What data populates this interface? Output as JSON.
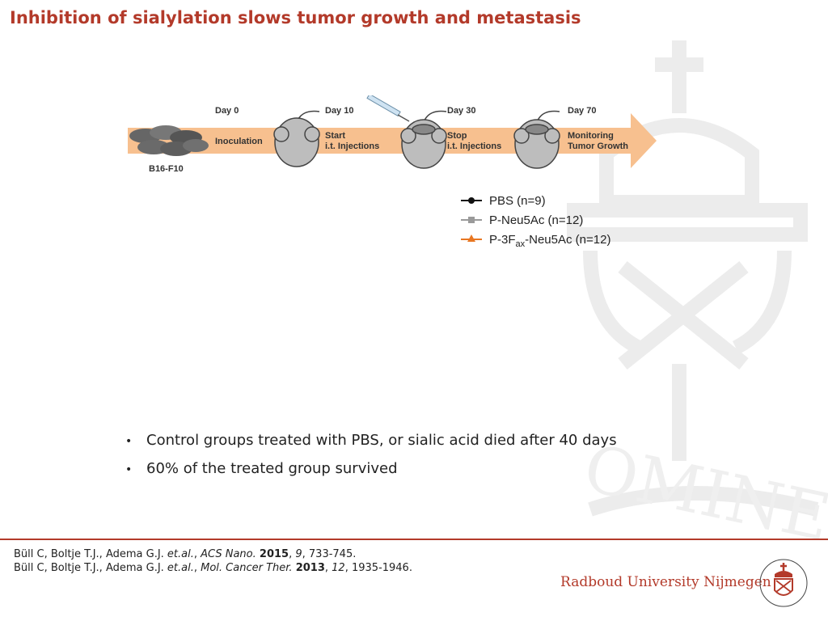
{
  "slide": {
    "title": "Inhibition of sialylation slows tumor growth and metastasis"
  },
  "timeline": {
    "days": [
      "Day 0",
      "Day 10",
      "Day 30",
      "Day 70"
    ],
    "steps": [
      {
        "line1": "Inoculation",
        "line2": ""
      },
      {
        "line1": "Start",
        "line2": "i.t. Injections"
      },
      {
        "line1": "Stop",
        "line2": "i.t. Injections"
      },
      {
        "line1": "Monitoring",
        "line2": "Tumor Growth"
      }
    ],
    "cell_line": "B16-F10",
    "arrow_color": "#f7c08f"
  },
  "legend": [
    {
      "label": "PBS (n=9)",
      "color": "#111111",
      "marker": "circle"
    },
    {
      "label": "P-Neu5Ac (n=12)",
      "color": "#9a9a9a",
      "marker": "square"
    },
    {
      "label_pre": "P-3F",
      "label_sub": "ax",
      "label_post": "-Neu5Ac (n=12)",
      "color": "#e87722",
      "marker": "triangle"
    }
  ],
  "bullets": [
    "Control groups treated with PBS, or sialic acid died after 40 days",
    "60% of the treated group survived"
  ],
  "references": [
    {
      "authors": "Büll C, Boltje T.J., Adema G.J. ",
      "etal": "et.al.",
      "sep": ", ",
      "journal": "ACS Nano.",
      "year": "2015",
      "volume": "9",
      "pages": ", 733-745."
    },
    {
      "authors": "Büll C, Boltje T.J., Adema G.J. ",
      "etal": "et.al.",
      "sep": ", ",
      "journal": "Mol. Cancer Ther.",
      "year": "2013",
      "volume": "12",
      "pages": ", 1935-1946."
    }
  ],
  "branding": {
    "university": "Radboud University Nijmegen",
    "accent_color": "#b33a2a"
  }
}
